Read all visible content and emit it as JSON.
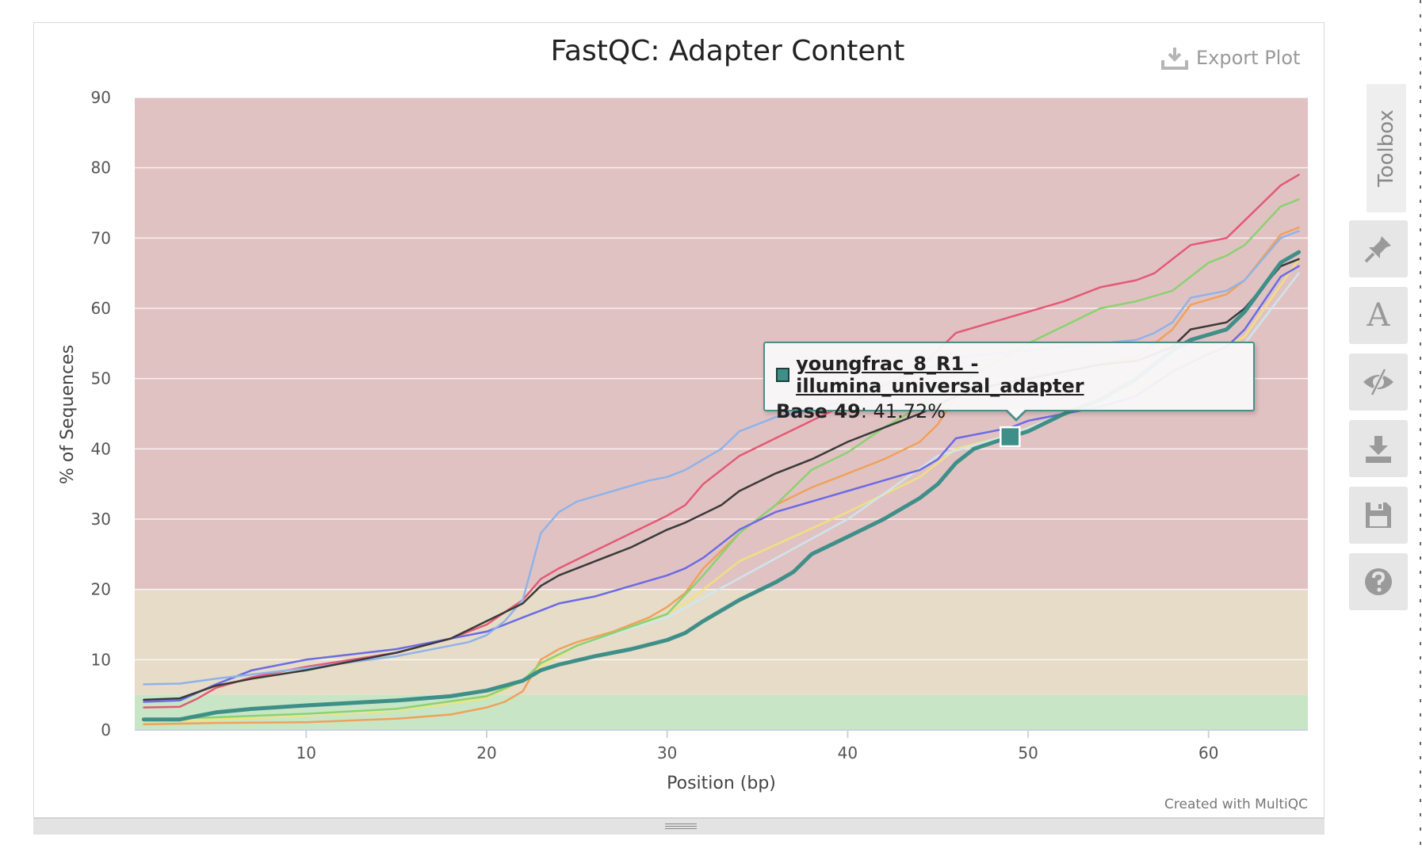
{
  "plot": {
    "title": "FastQC: Adapter Content",
    "export_label": "Export Plot",
    "credit": "Created with MultiQC"
  },
  "tooltip": {
    "series_name": "youngfrac_8_R1 - illumina_universal_adapter",
    "label": "Base 49",
    "value": ": 41.72%",
    "color": "#3f8f89"
  },
  "toolbox": {
    "tab_label": "Toolbox",
    "buttons": [
      {
        "name": "pin-icon"
      },
      {
        "name": "font-icon",
        "glyph": "A"
      },
      {
        "name": "hide-samples-icon"
      },
      {
        "name": "download-icon"
      },
      {
        "name": "save-icon"
      },
      {
        "name": "help-icon"
      }
    ]
  },
  "chart_data": {
    "type": "line",
    "title": "FastQC: Adapter Content",
    "xlabel": "Position (bp)",
    "ylabel": "% of Sequences",
    "xlim": [
      0.5,
      65.5
    ],
    "ylim": [
      0,
      90
    ],
    "xticks": [
      10,
      20,
      30,
      40,
      50,
      60
    ],
    "yticks": [
      0,
      10,
      20,
      30,
      40,
      50,
      60,
      70,
      80,
      90
    ],
    "bands": [
      {
        "from": 0,
        "to": 5,
        "color": "#c8e6c6"
      },
      {
        "from": 5,
        "to": 20,
        "color": "#e6dcc8"
      },
      {
        "from": 20,
        "to": 90,
        "color": "#e1c2c3"
      }
    ],
    "highlight": {
      "x": 49,
      "y": 41.72
    },
    "series": [
      {
        "color": "#f2e27a",
        "width": 2.5,
        "opacity": 0.9,
        "points": [
          [
            1,
            1.2
          ],
          [
            5,
            1.5
          ],
          [
            10,
            2.0
          ],
          [
            15,
            2.7
          ],
          [
            20,
            4.5
          ],
          [
            22,
            7
          ],
          [
            23,
            9
          ],
          [
            25,
            12
          ],
          [
            28,
            14.5
          ],
          [
            30,
            16.5
          ],
          [
            31,
            18
          ],
          [
            34,
            24
          ],
          [
            37,
            27.5
          ],
          [
            40,
            31
          ],
          [
            44,
            36
          ],
          [
            46,
            40
          ],
          [
            49,
            42
          ],
          [
            52,
            45
          ],
          [
            55,
            48
          ],
          [
            58,
            51
          ],
          [
            60,
            53
          ],
          [
            62,
            56
          ],
          [
            65,
            67
          ]
        ]
      },
      {
        "color": "#cde8f2",
        "width": 2.5,
        "opacity": 0.9,
        "points": [
          [
            1,
            1.5
          ],
          [
            5,
            1.8
          ],
          [
            10,
            2.2
          ],
          [
            15,
            2.9
          ],
          [
            20,
            4.8
          ],
          [
            22,
            7
          ],
          [
            23,
            9.5
          ],
          [
            25,
            12
          ],
          [
            30,
            16
          ],
          [
            35,
            23
          ],
          [
            40,
            30
          ],
          [
            45,
            39
          ],
          [
            49,
            42
          ],
          [
            53,
            46
          ],
          [
            57,
            48
          ],
          [
            60,
            52
          ],
          [
            62,
            55
          ],
          [
            65,
            65
          ]
        ]
      },
      {
        "color": "#f0a15a",
        "width": 2.5,
        "opacity": 1,
        "points": [
          [
            1,
            0.8
          ],
          [
            5,
            1.0
          ],
          [
            10,
            1.1
          ],
          [
            15,
            1.6
          ],
          [
            18,
            2.2
          ],
          [
            20,
            3.2
          ],
          [
            21,
            4
          ],
          [
            22,
            5.5
          ],
          [
            23,
            10
          ],
          [
            24,
            11.5
          ],
          [
            25,
            12.5
          ],
          [
            27,
            14
          ],
          [
            29,
            16
          ],
          [
            30,
            17.5
          ],
          [
            31,
            19.5
          ],
          [
            32,
            23
          ],
          [
            34,
            28
          ],
          [
            36,
            32
          ],
          [
            38,
            34.5
          ],
          [
            40,
            36.5
          ],
          [
            42,
            38.5
          ],
          [
            44,
            41
          ],
          [
            45,
            43.5
          ],
          [
            46,
            47.5
          ],
          [
            48,
            49
          ],
          [
            50,
            50
          ],
          [
            52,
            51
          ],
          [
            54,
            52
          ],
          [
            56,
            53
          ],
          [
            58,
            57
          ],
          [
            59,
            60.5
          ],
          [
            61,
            62
          ],
          [
            62,
            64
          ],
          [
            64,
            70.5
          ],
          [
            65,
            71.5
          ]
        ]
      },
      {
        "color": "#8ad270",
        "width": 2.5,
        "opacity": 1,
        "points": [
          [
            1,
            1.5
          ],
          [
            5,
            1.8
          ],
          [
            10,
            2.3
          ],
          [
            15,
            3.0
          ],
          [
            20,
            4.8
          ],
          [
            22,
            7
          ],
          [
            23,
            9.5
          ],
          [
            25,
            12
          ],
          [
            30,
            16.5
          ],
          [
            32,
            22
          ],
          [
            34,
            28
          ],
          [
            36,
            32
          ],
          [
            38,
            37
          ],
          [
            40,
            39.5
          ],
          [
            42,
            43
          ],
          [
            44,
            46
          ],
          [
            46,
            49
          ],
          [
            48,
            52
          ],
          [
            50,
            55
          ],
          [
            52,
            57.5
          ],
          [
            54,
            60
          ],
          [
            56,
            61
          ],
          [
            58,
            62.5
          ],
          [
            60,
            66.5
          ],
          [
            61,
            67.5
          ],
          [
            62,
            69
          ],
          [
            64,
            74.5
          ],
          [
            65,
            75.5
          ]
        ]
      },
      {
        "color": "#e35a75",
        "width": 2.5,
        "opacity": 1,
        "points": [
          [
            1,
            3.2
          ],
          [
            3,
            3.3
          ],
          [
            4,
            4.5
          ],
          [
            5,
            6
          ],
          [
            7,
            7.5
          ],
          [
            10,
            9
          ],
          [
            15,
            11
          ],
          [
            18,
            13
          ],
          [
            20,
            15
          ],
          [
            22,
            18.5
          ],
          [
            23,
            21.5
          ],
          [
            24,
            23
          ],
          [
            26,
            25.5
          ],
          [
            28,
            28
          ],
          [
            30,
            30.5
          ],
          [
            31,
            32
          ],
          [
            32,
            35
          ],
          [
            34,
            39
          ],
          [
            36,
            41.5
          ],
          [
            38,
            44
          ],
          [
            40,
            46.5
          ],
          [
            42,
            49
          ],
          [
            44,
            51.5
          ],
          [
            46,
            56.5
          ],
          [
            48,
            58
          ],
          [
            50,
            59.5
          ],
          [
            52,
            61
          ],
          [
            54,
            63
          ],
          [
            56,
            64
          ],
          [
            57,
            65
          ],
          [
            58,
            67
          ],
          [
            59,
            69
          ],
          [
            61,
            70
          ],
          [
            62,
            72.5
          ],
          [
            64,
            77.5
          ],
          [
            65,
            79
          ]
        ]
      },
      {
        "color": "#6b6be3",
        "width": 2.5,
        "opacity": 1,
        "points": [
          [
            1,
            4
          ],
          [
            3,
            4.2
          ],
          [
            5,
            6.5
          ],
          [
            7,
            8.5
          ],
          [
            10,
            10
          ],
          [
            15,
            11.5
          ],
          [
            18,
            13
          ],
          [
            20,
            14
          ],
          [
            22,
            16
          ],
          [
            23,
            17
          ],
          [
            24,
            18
          ],
          [
            26,
            19
          ],
          [
            28,
            20.5
          ],
          [
            30,
            22
          ],
          [
            31,
            23
          ],
          [
            32,
            24.5
          ],
          [
            34,
            28.5
          ],
          [
            36,
            31
          ],
          [
            38,
            32.5
          ],
          [
            40,
            34
          ],
          [
            42,
            35.5
          ],
          [
            44,
            37
          ],
          [
            45,
            38.5
          ],
          [
            46,
            41.5
          ],
          [
            48,
            42.5
          ],
          [
            49,
            43
          ],
          [
            50,
            44
          ],
          [
            52,
            45
          ],
          [
            54,
            46
          ],
          [
            56,
            47.5
          ],
          [
            58,
            51
          ],
          [
            60,
            53.5
          ],
          [
            61,
            54.5
          ],
          [
            62,
            57
          ],
          [
            64,
            64.5
          ],
          [
            65,
            66
          ]
        ]
      },
      {
        "color": "#8fb3e8",
        "width": 2.5,
        "opacity": 1,
        "points": [
          [
            1,
            6.5
          ],
          [
            3,
            6.6
          ],
          [
            5,
            7.3
          ],
          [
            10,
            8.8
          ],
          [
            15,
            10.5
          ],
          [
            19,
            12.5
          ],
          [
            20,
            13.5
          ],
          [
            21,
            15.5
          ],
          [
            22,
            18.5
          ],
          [
            23,
            28
          ],
          [
            24,
            31
          ],
          [
            25,
            32.5
          ],
          [
            27,
            34
          ],
          [
            29,
            35.5
          ],
          [
            30,
            36
          ],
          [
            31,
            37
          ],
          [
            33,
            40
          ],
          [
            34,
            42.5
          ],
          [
            36,
            44.5
          ],
          [
            38,
            45.5
          ],
          [
            40,
            47
          ],
          [
            42,
            49
          ],
          [
            44,
            51
          ],
          [
            46,
            53
          ],
          [
            48,
            53.5
          ],
          [
            50,
            54
          ],
          [
            52,
            54.5
          ],
          [
            54,
            55
          ],
          [
            56,
            55.5
          ],
          [
            57,
            56.5
          ],
          [
            58,
            58
          ],
          [
            59,
            61.5
          ],
          [
            61,
            62.5
          ],
          [
            62,
            64
          ],
          [
            64,
            70
          ],
          [
            65,
            71
          ]
        ]
      },
      {
        "color": "#3a3a3a",
        "width": 2.5,
        "opacity": 1,
        "points": [
          [
            1,
            4.3
          ],
          [
            3,
            4.5
          ],
          [
            5,
            6.3
          ],
          [
            7,
            7.3
          ],
          [
            10,
            8.5
          ],
          [
            15,
            11
          ],
          [
            18,
            13
          ],
          [
            20,
            15.5
          ],
          [
            22,
            18
          ],
          [
            23,
            20.5
          ],
          [
            24,
            22
          ],
          [
            26,
            24
          ],
          [
            28,
            26
          ],
          [
            30,
            28.5
          ],
          [
            31,
            29.5
          ],
          [
            33,
            32
          ],
          [
            34,
            34
          ],
          [
            36,
            36.5
          ],
          [
            38,
            38.5
          ],
          [
            40,
            41
          ],
          [
            42,
            43
          ],
          [
            44,
            45
          ],
          [
            46,
            47.5
          ],
          [
            48,
            49
          ],
          [
            50,
            50
          ],
          [
            52,
            51
          ],
          [
            54,
            52
          ],
          [
            56,
            52.5
          ],
          [
            58,
            54.5
          ],
          [
            59,
            57
          ],
          [
            61,
            58
          ],
          [
            62,
            60
          ],
          [
            64,
            66
          ],
          [
            65,
            67
          ]
        ]
      },
      {
        "color": "#3f8f89",
        "width": 5,
        "opacity": 1,
        "points": [
          [
            1,
            1.5
          ],
          [
            3,
            1.5
          ],
          [
            5,
            2.5
          ],
          [
            7,
            3
          ],
          [
            10,
            3.5
          ],
          [
            15,
            4.2
          ],
          [
            18,
            4.8
          ],
          [
            20,
            5.6
          ],
          [
            22,
            7
          ],
          [
            23,
            8.5
          ],
          [
            24,
            9.3
          ],
          [
            26,
            10.5
          ],
          [
            28,
            11.5
          ],
          [
            30,
            12.8
          ],
          [
            31,
            13.8
          ],
          [
            32,
            15.5
          ],
          [
            33,
            17
          ],
          [
            34,
            18.5
          ],
          [
            36,
            21
          ],
          [
            37,
            22.5
          ],
          [
            38,
            25
          ],
          [
            40,
            27.5
          ],
          [
            42,
            30
          ],
          [
            44,
            33
          ],
          [
            45,
            35
          ],
          [
            46,
            38
          ],
          [
            47,
            40
          ],
          [
            49,
            41.72
          ],
          [
            50,
            42.5
          ],
          [
            52,
            45
          ],
          [
            54,
            47
          ],
          [
            56,
            50
          ],
          [
            57,
            52
          ],
          [
            58,
            54
          ],
          [
            59,
            55.5
          ],
          [
            61,
            57
          ],
          [
            62,
            59.5
          ],
          [
            64,
            66.5
          ],
          [
            65,
            68
          ]
        ]
      }
    ]
  }
}
